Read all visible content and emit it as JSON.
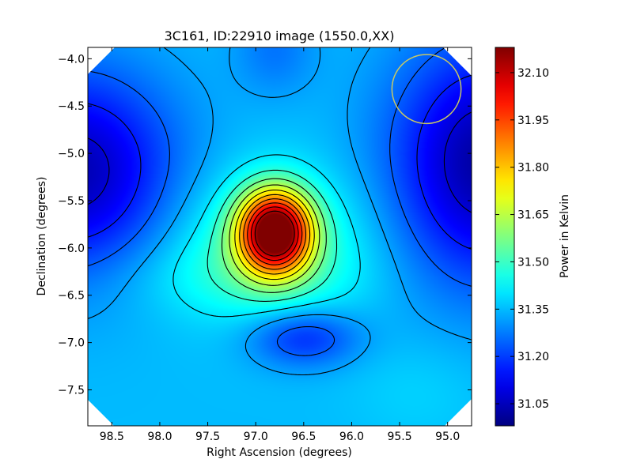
{
  "chart_data": {
    "type": "heatmap",
    "title": "3C161, ID:22910 image (1550.0,XX)",
    "xlabel": "Right Ascension (degrees)",
    "ylabel": "Declination (degrees)",
    "xlim": [
      98.75,
      94.75
    ],
    "ylim": [
      -7.88,
      -3.88
    ],
    "x_reversed": true,
    "x_ticks": [
      98.5,
      98.0,
      97.5,
      97.0,
      96.5,
      96.0,
      95.5,
      95.0
    ],
    "x_tick_labels": [
      "98.5",
      "98.0",
      "97.5",
      "97.0",
      "96.5",
      "96.0",
      "95.5",
      "95.0"
    ],
    "y_ticks": [
      -4.0,
      -4.5,
      -5.0,
      -5.5,
      -6.0,
      -6.5,
      -7.0,
      -7.5
    ],
    "y_tick_labels": [
      "−4.0",
      "−4.5",
      "−5.0",
      "−5.5",
      "−6.0",
      "−6.5",
      "−7.0",
      "−7.5"
    ],
    "colorbar": {
      "label": "Power in Kelvin",
      "colormap": "jet",
      "range": [
        30.98,
        32.18
      ],
      "ticks": [
        31.05,
        31.2,
        31.35,
        31.5,
        31.65,
        31.8,
        31.95,
        32.1
      ],
      "tick_labels": [
        "31.05",
        "31.20",
        "31.35",
        "31.50",
        "31.65",
        "31.80",
        "31.95",
        "32.10"
      ]
    },
    "features": [
      {
        "type": "peak",
        "ra": 96.8,
        "dec": -5.83,
        "value": 32.18
      },
      {
        "type": "local-minimum",
        "ra": 96.4,
        "dec": -6.9,
        "value": 31.2
      },
      {
        "type": "minimum",
        "ra": 98.75,
        "dec": -5.2,
        "value": 30.98
      },
      {
        "type": "minimum",
        "ra": 94.75,
        "dec": -5.1,
        "value": 30.98
      }
    ],
    "beam_circle": {
      "ra": 95.22,
      "dec": -4.32,
      "radius_deg": 0.36,
      "color": "#c8c864"
    },
    "grid": false
  }
}
